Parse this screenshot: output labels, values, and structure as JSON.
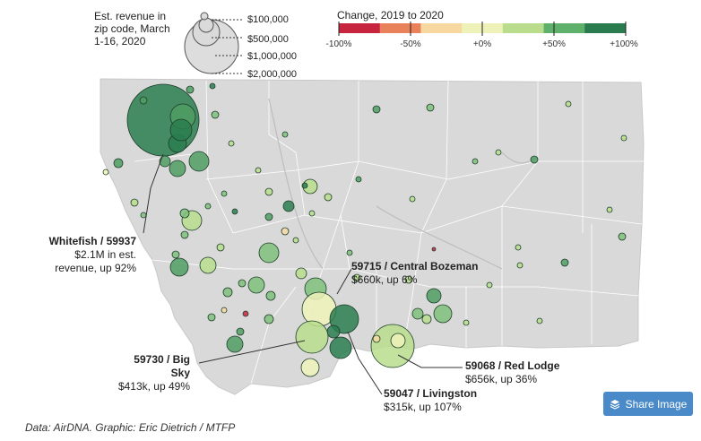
{
  "legend_size": {
    "title": "Est. revenue in zip code, March 1-16, 2020",
    "labels": [
      "$100,000",
      "$500,000",
      "$1,000,000",
      "$2,000,000"
    ]
  },
  "legend_color": {
    "title": "Change, 2019 to 2020",
    "ticks": [
      "-100%",
      "-50%",
      "+0%",
      "+50%",
      "+100%"
    ],
    "colors": [
      "#c7243f",
      "#e9825a",
      "#f6d8a0",
      "#eef2b8",
      "#b9dd8c",
      "#5fb06a",
      "#2a7c4f"
    ]
  },
  "callouts": [
    {
      "title": "59937 / Whitefish",
      "line1": "$2.1M in est.",
      "line2": "revenue, up 92%"
    },
    {
      "title": "59715 / Central Bozeman",
      "line1": "$660k, up 6%",
      "line2": ""
    },
    {
      "title": "59730 / Big Sky",
      "line1": "$413k, up 49%",
      "line2": ""
    },
    {
      "title": "59068 / Red Lodge",
      "line1": "$656k, up 36%",
      "line2": ""
    },
    {
      "title": "59047 / Livingston",
      "line1": "$315k, up 107%",
      "line2": ""
    }
  ],
  "credit": "Data: AirDNA. Graphic: Eric Dietrich / MTFP",
  "share_label": "Share Image",
  "colors": {
    "land": "#d9d9d9",
    "border": "#ffffff",
    "accent": "#4a8ac8"
  }
}
